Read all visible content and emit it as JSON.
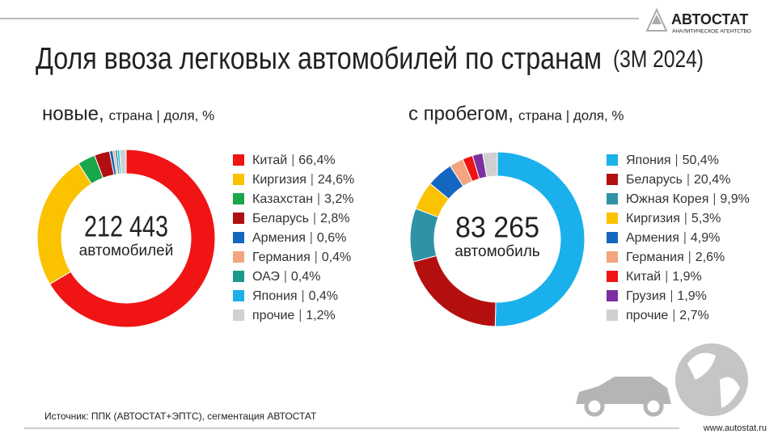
{
  "title": "Доля ввоза легковых автомобилей по странам",
  "title_period": "(3М 2024)",
  "logo": {
    "name": "АВТОСТАТ",
    "tagline": "АНАЛИТИЧЕСКОЕ АГЕНТСТВО"
  },
  "source": "Источник: ППК (АВТОСТАТ+ЭПТС), сегментация АВТОСТАТ",
  "website": "www.autostat.ru",
  "chart_data": [
    {
      "type": "pie",
      "title": "новые,",
      "subtitle": "страна | доля, %",
      "center_value": "212 443",
      "center_caption": "автомобилей",
      "categories": [
        "Китай",
        "Киргизия",
        "Казахстан",
        "Беларусь",
        "Армения",
        "Германия",
        "ОАЭ",
        "Япония",
        "прочие"
      ],
      "values": [
        66.4,
        24.6,
        3.2,
        2.8,
        0.6,
        0.4,
        0.4,
        0.4,
        1.2
      ],
      "value_labels": [
        "66,4%",
        "24,6%",
        "3,2%",
        "2,8%",
        "0,6%",
        "0,4%",
        "0,4%",
        "0,4%",
        "1,2%"
      ],
      "colors": [
        "#f01414",
        "#fbc200",
        "#1aa64a",
        "#b01010",
        "#1467c0",
        "#f2a57e",
        "#1a9a8a",
        "#1ab0e8",
        "#d0d0d0"
      ]
    },
    {
      "type": "pie",
      "title": "с пробегом,",
      "subtitle": "страна | доля, %",
      "center_value": "83 265",
      "center_caption": "автомобиль",
      "categories": [
        "Япония",
        "Беларусь",
        "Южная Корея",
        "Киргизия",
        "Армения",
        "Германия",
        "Китай",
        "Грузия",
        "прочие"
      ],
      "values": [
        50.4,
        20.4,
        9.9,
        5.3,
        4.9,
        2.6,
        1.9,
        1.9,
        2.7
      ],
      "value_labels": [
        "50,4%",
        "20,4%",
        "9,9%",
        "5,3%",
        "4,9%",
        "2,6%",
        "1,9%",
        "1,9%",
        "2,7%"
      ],
      "colors": [
        "#19b0ec",
        "#b40f0f",
        "#2f93a5",
        "#fbc200",
        "#1467c0",
        "#f2a57e",
        "#f01414",
        "#7b2fa0",
        "#d0d0d0"
      ]
    }
  ]
}
